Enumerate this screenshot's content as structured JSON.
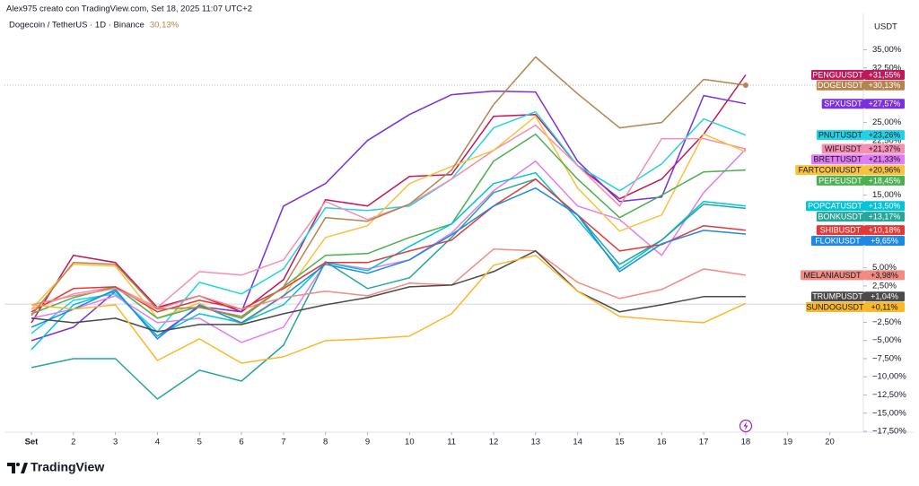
{
  "chart_data": {
    "type": "line",
    "credit": "Alex975 creato con TradingView.com, Set 18, 2025 11:07 UTC+2",
    "title": "Dogecoin / TetherUS · 1D · Binance",
    "title_value": "30,13%",
    "y_label": "USDT",
    "brand": "TradingView",
    "x": [
      1,
      2,
      3,
      4,
      5,
      6,
      7,
      8,
      9,
      10,
      11,
      12,
      13,
      14,
      15,
      16,
      17,
      18
    ],
    "xlim": [
      0.36,
      20.8
    ],
    "xticks": [
      {
        "value": 1,
        "label": "Set"
      },
      2,
      3,
      4,
      5,
      6,
      7,
      8,
      9,
      10,
      11,
      12,
      13,
      14,
      15,
      16,
      17,
      18,
      19,
      20
    ],
    "ylim": [
      -17.5,
      40
    ],
    "yticks": [
      {
        "value": 35,
        "label": "35,00%"
      },
      {
        "value": 32.5,
        "label": "32,50%"
      },
      {
        "value": 25,
        "label": "25,00%"
      },
      {
        "value": 22.5,
        "label": "22,50%"
      },
      {
        "value": 15,
        "label": "15,00%"
      },
      {
        "value": 5,
        "label": "5,00%"
      },
      {
        "value": 2.5,
        "label": "2,50%"
      },
      {
        "value": -2.5,
        "label": "−2,50%"
      },
      {
        "value": -5,
        "label": "−5,00%"
      },
      {
        "value": -7.5,
        "label": "−7,50%"
      },
      {
        "value": -10,
        "label": "−10,00%"
      },
      {
        "value": -12.5,
        "label": "−12,50%"
      },
      {
        "value": -15,
        "label": "−15,00%"
      },
      {
        "value": -17.5,
        "label": "−17,50%"
      }
    ],
    "grid": false,
    "series": [
      {
        "name": "PENGUUSDT",
        "color": "#c2185b",
        "values": [
          -2.56,
          6.71,
          5.72,
          -0.46,
          1.15,
          -1.07,
          3.37,
          14.37,
          13.51,
          17.58,
          17.83,
          25.85,
          26.1,
          19.06,
          14.49,
          17.21,
          23.39,
          31.55
        ],
        "value_labels": [
          null,
          null,
          null,
          null,
          null,
          null,
          null,
          null,
          null,
          null,
          null,
          null,
          null,
          null,
          null,
          null,
          null,
          "+31,55%"
        ]
      },
      {
        "name": "DOGEUSDT",
        "color": "#b5834e",
        "values": [
          -1.57,
          5.72,
          5.47,
          -0.7,
          -0.46,
          -1.69,
          2.38,
          11.9,
          11.41,
          13.75,
          18.44,
          27.46,
          34.01,
          28.95,
          24.26,
          25.0,
          30.93,
          30.13
        ],
        "value_labels": [
          null,
          null,
          null,
          null,
          null,
          null,
          null,
          null,
          null,
          null,
          null,
          null,
          null,
          null,
          null,
          null,
          null,
          "+30,13%"
        ]
      },
      {
        "name": "SPXUSDT",
        "color": "#7b2fe0",
        "values": [
          -5.03,
          -3.17,
          1.77,
          -4.41,
          -0.33,
          -1.07,
          13.5,
          16.59,
          22.52,
          26.1,
          28.82,
          29.32,
          29.19,
          19.68,
          14.12,
          14.74,
          28.7,
          27.57
        ],
        "value_labels": [
          null,
          null,
          null,
          null,
          null,
          null,
          null,
          null,
          null,
          null,
          null,
          null,
          null,
          null,
          null,
          null,
          null,
          "+27,57%"
        ]
      },
      {
        "name": "PNUTUSDT",
        "color": "#22d3e6",
        "values": [
          -4.04,
          0.53,
          1.4,
          -3.79,
          3.0,
          1.4,
          4.85,
          13.25,
          12.88,
          13.5,
          17.21,
          24.26,
          26.48,
          19.06,
          15.6,
          19.31,
          25.49,
          23.26
        ],
        "value_labels": [
          null,
          null,
          null,
          null,
          null,
          null,
          null,
          null,
          null,
          null,
          null,
          null,
          null,
          null,
          null,
          null,
          null,
          "+23,26%"
        ]
      },
      {
        "name": "WIFUSDT",
        "color": "#f48fb1",
        "values": [
          -0.7,
          1.4,
          2.38,
          -0.46,
          4.48,
          3.99,
          6.09,
          14.12,
          11.65,
          13.75,
          17.21,
          21.16,
          24.62,
          19.06,
          13.5,
          22.77,
          22.77,
          21.37
        ],
        "value_labels": [
          null,
          null,
          null,
          null,
          null,
          null,
          null,
          null,
          null,
          null,
          null,
          null,
          null,
          null,
          null,
          null,
          null,
          "+21,37%"
        ]
      },
      {
        "name": "BRETTUSDT",
        "color": "#e27cf2",
        "values": [
          -1.94,
          -0.7,
          1.15,
          -2.56,
          -1.94,
          -5.27,
          -3.17,
          5.72,
          4.85,
          6.09,
          9.8,
          15.6,
          19.68,
          13.5,
          11.65,
          6.71,
          15.35,
          21.33
        ],
        "value_labels": [
          null,
          null,
          null,
          null,
          null,
          null,
          null,
          null,
          null,
          null,
          null,
          null,
          null,
          null,
          null,
          null,
          null,
          "+21,33%"
        ]
      },
      {
        "name": "FARTCOINUSDT",
        "color": "#f9c23c",
        "values": [
          -0.7,
          5.47,
          5.23,
          -1.94,
          0.16,
          -2.8,
          1.15,
          9.18,
          10.79,
          16.59,
          18.94,
          21.16,
          25.85,
          15.97,
          10.04,
          12.27,
          23.39,
          20.96
        ],
        "value_labels": [
          null,
          null,
          null,
          null,
          null,
          null,
          null,
          null,
          null,
          null,
          null,
          null,
          null,
          null,
          null,
          null,
          null,
          "+20,96%"
        ]
      },
      {
        "name": "PEPEUSDT",
        "color": "#4caf50",
        "values": [
          -1.32,
          0.9,
          2.38,
          -1.94,
          -0.33,
          -1.94,
          2.38,
          6.71,
          6.95,
          9.18,
          11.03,
          19.68,
          23.39,
          17.21,
          11.9,
          14.99,
          18.2,
          18.45
        ],
        "value_labels": [
          null,
          null,
          null,
          null,
          null,
          null,
          null,
          null,
          null,
          null,
          null,
          null,
          null,
          null,
          null,
          null,
          null,
          "+18,45%"
        ]
      },
      {
        "name": "POPCATUSDT",
        "color": "#00c4d8",
        "values": [
          -6.26,
          -0.09,
          1.77,
          -4.41,
          -1.32,
          -2.56,
          -0.09,
          5.72,
          4.61,
          7.94,
          11.03,
          16.59,
          18.07,
          11.65,
          4.85,
          8.81,
          14.12,
          13.5
        ],
        "value_labels": [
          null,
          null,
          null,
          null,
          null,
          null,
          null,
          null,
          null,
          null,
          null,
          null,
          null,
          null,
          null,
          null,
          null,
          "+13,50%"
        ]
      },
      {
        "name": "BONKUSDT",
        "color": "#26a69a",
        "values": [
          -8.73,
          -7.5,
          -7.5,
          -13.06,
          -9.1,
          -10.59,
          -5.65,
          5.84,
          2.14,
          3.62,
          9.18,
          15.35,
          17.21,
          12.27,
          5.47,
          8.81,
          13.75,
          13.17
        ],
        "value_labels": [
          null,
          null,
          null,
          null,
          null,
          null,
          null,
          null,
          null,
          null,
          null,
          null,
          null,
          null,
          null,
          null,
          null,
          "+13,17%"
        ]
      },
      {
        "name": "SHIBUSDT",
        "color": "#e53935",
        "values": [
          -1.07,
          2.14,
          2.38,
          -1.07,
          0.53,
          -0.7,
          2.14,
          5.72,
          5.72,
          7.32,
          8.81,
          13.5,
          17.21,
          12.27,
          7.32,
          8.19,
          10.79,
          10.18
        ],
        "value_labels": [
          null,
          null,
          null,
          null,
          null,
          null,
          null,
          null,
          null,
          null,
          null,
          null,
          null,
          null,
          null,
          null,
          null,
          "+10,18%"
        ]
      },
      {
        "name": "FLOKIUSDT",
        "color": "#1e88e5",
        "values": [
          -3.17,
          -0.7,
          2.01,
          -4.78,
          -0.09,
          -2.56,
          1.15,
          5.47,
          4.24,
          6.09,
          9.55,
          13.5,
          15.97,
          12.27,
          4.48,
          8.3,
          10.15,
          9.65
        ],
        "value_labels": [
          null,
          null,
          null,
          null,
          null,
          null,
          null,
          null,
          null,
          null,
          null,
          null,
          null,
          null,
          null,
          null,
          null,
          "+9,65%"
        ]
      },
      {
        "name": "MELANIAUSDT",
        "color": "#f28b82",
        "values": [
          -0.09,
          1.15,
          2.14,
          -0.7,
          1.15,
          -0.7,
          0.9,
          1.77,
          1.15,
          2.88,
          2.63,
          7.57,
          7.33,
          3.0,
          0.78,
          2.01,
          4.85,
          3.98
        ],
        "value_labels": [
          null,
          null,
          null,
          null,
          null,
          null,
          null,
          null,
          null,
          null,
          null,
          null,
          null,
          null,
          null,
          null,
          null,
          "+3,98%"
        ]
      },
      {
        "name": "TRUMPUSDT",
        "color": "#4a4a4a",
        "values": [
          -1.94,
          -2.56,
          -1.94,
          -3.79,
          -2.8,
          -2.8,
          -1.32,
          -0.09,
          0.9,
          2.38,
          2.63,
          4.48,
          7.33,
          1.77,
          -1.07,
          -0.09,
          1.03,
          1.04
        ],
        "value_labels": [
          null,
          null,
          null,
          null,
          null,
          null,
          null,
          null,
          null,
          null,
          null,
          null,
          null,
          null,
          null,
          null,
          null,
          "+1,04%"
        ]
      },
      {
        "name": "SUNDOGUSDT",
        "color": "#fbb829",
        "values": [
          -0.09,
          -0.7,
          -0.09,
          -7.75,
          -4.78,
          -8.12,
          -7.25,
          -5.03,
          -4.78,
          -4.41,
          -1.32,
          5.35,
          6.71,
          1.77,
          -1.69,
          -2.19,
          -2.56,
          0.11
        ],
        "value_labels": [
          null,
          null,
          null,
          null,
          null,
          null,
          null,
          null,
          null,
          null,
          null,
          null,
          null,
          null,
          null,
          null,
          null,
          "+0,11%"
        ]
      }
    ]
  }
}
